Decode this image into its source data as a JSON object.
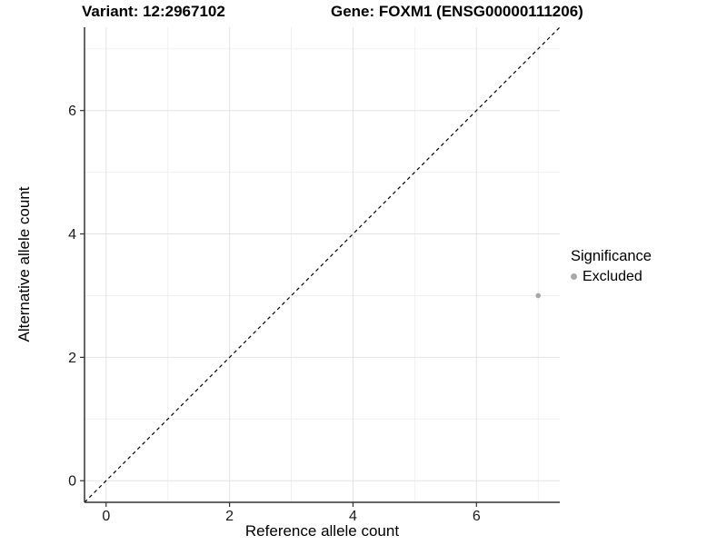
{
  "chart_data": {
    "type": "scatter",
    "titles": {
      "variant": "Variant: 12:2967102",
      "gene": "Gene: FOXM1 (ENSG00000111206)"
    },
    "xlabel": "Reference allele count",
    "ylabel": "Alternative allele count",
    "xlim": [
      -0.35,
      7.35
    ],
    "ylim": [
      -0.35,
      7.35
    ],
    "x_ticks": [
      0,
      2,
      4,
      6
    ],
    "y_ticks": [
      0,
      2,
      4,
      6
    ],
    "x_minor_gridlines": [
      1,
      3,
      5,
      7
    ],
    "y_minor_gridlines": [
      1,
      3,
      5,
      7
    ],
    "grid": "on",
    "points": [
      {
        "x": 7,
        "y": 3,
        "significance": "Excluded"
      }
    ],
    "identity_line": {
      "equation": "y = x",
      "style": "dashed"
    },
    "legend": {
      "title": "Significance",
      "position": "right",
      "items": [
        {
          "label": "Excluded",
          "color": "#a8a8a8"
        }
      ]
    },
    "colors": {
      "point": "#a8a8a8",
      "grid_major": "#e4e4e4",
      "grid_minor": "#f0f0f0",
      "axis_line": "#333333",
      "tick_mark": "#333333",
      "tick_text": "#1a1a1a",
      "identity_line": "#000000",
      "background": "#ffffff"
    }
  }
}
